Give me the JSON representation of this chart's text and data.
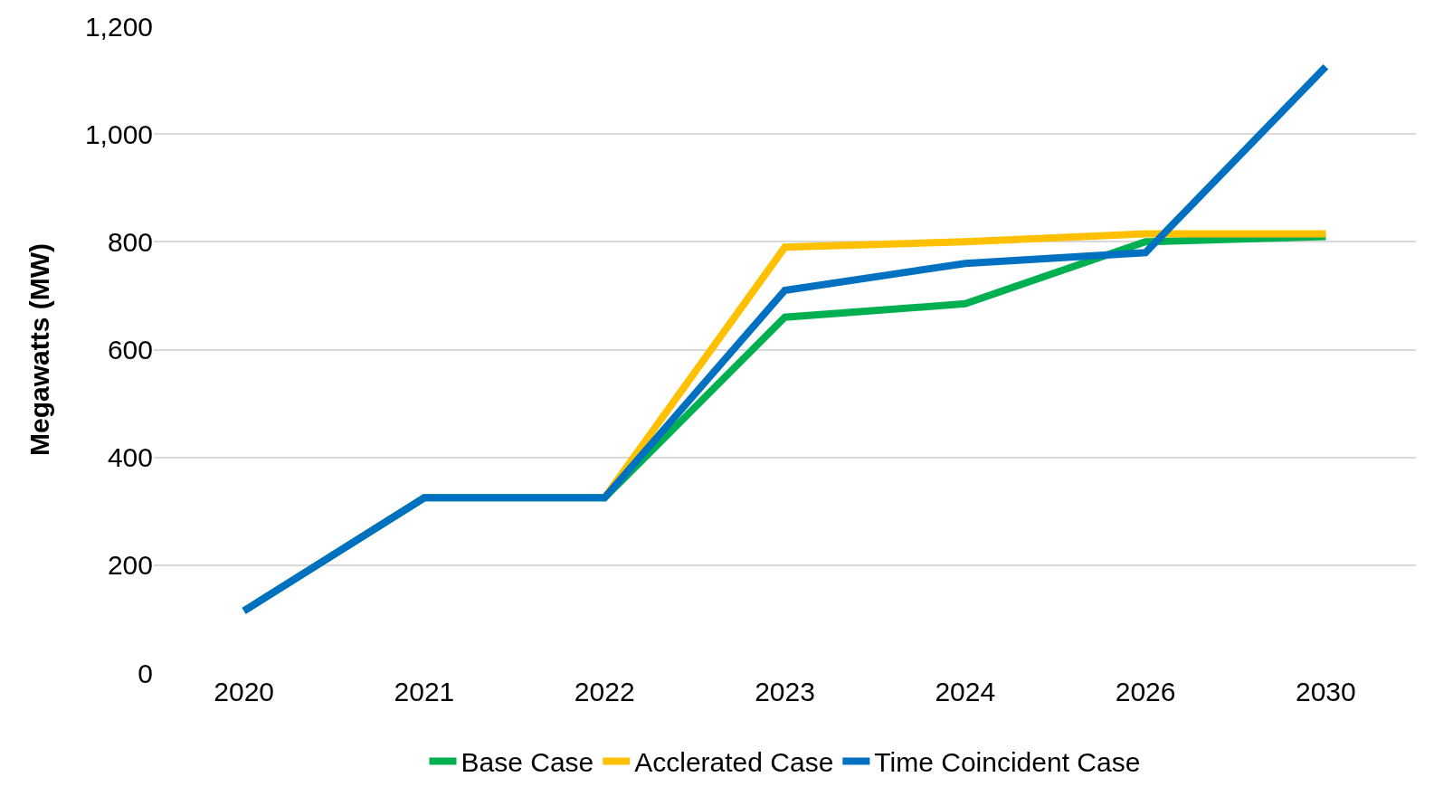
{
  "chart_data": {
    "type": "line",
    "ylabel": "Megawatts (MW)",
    "categories": [
      "2020",
      "2021",
      "2022",
      "2023",
      "2024",
      "2026",
      "2030"
    ],
    "series": [
      {
        "name": "Base Case",
        "color": "#00b050",
        "values": [
          115,
          325,
          325,
          660,
          685,
          800,
          810
        ]
      },
      {
        "name": "Acclerated Case",
        "color": "#ffc000",
        "values": [
          null,
          null,
          325,
          790,
          800,
          815,
          815
        ]
      },
      {
        "name": "Time Coincident Case",
        "color": "#0070c0",
        "values": [
          115,
          325,
          325,
          710,
          760,
          780,
          1125
        ]
      }
    ],
    "ylim": [
      0,
      1200
    ],
    "yticks": [
      0,
      200,
      400,
      600,
      800,
      {
        "value": 1000,
        "label": "1,000"
      },
      {
        "value": 1200,
        "label": "1,200"
      }
    ],
    "grid": "y",
    "legend": "bottom",
    "marker": "none",
    "line_style": "solid"
  }
}
